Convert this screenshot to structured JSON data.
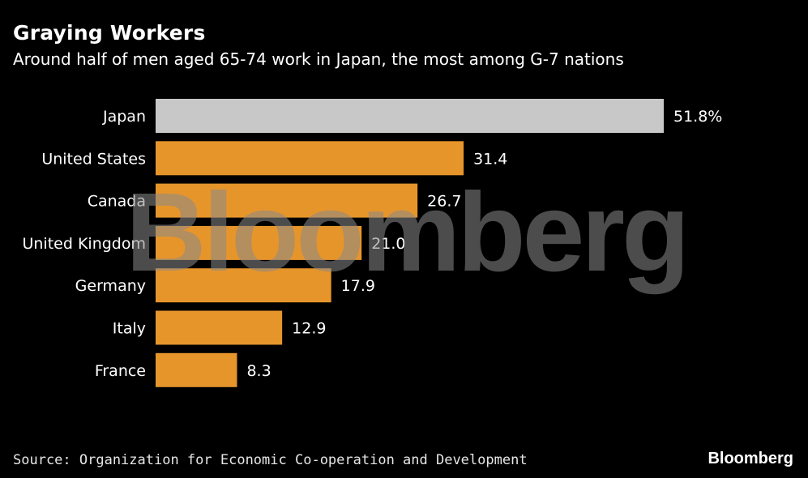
{
  "title": "Graying Workers",
  "subtitle": "Around half of men aged 65-74 work in Japan, the most among G-7 nations",
  "source": "Source: Organization for Economic Co-operation and Development",
  "brand": "Bloomberg",
  "watermark": "Bloomberg",
  "colors": {
    "background": "#000000",
    "highlight_bar": "#c8c8c8",
    "bar": "#e6952b",
    "text": "#ffffff"
  },
  "chart_data": {
    "type": "bar",
    "orientation": "horizontal",
    "categories": [
      "Japan",
      "United States",
      "Canada",
      "United Kingdom",
      "Germany",
      "Italy",
      "France"
    ],
    "values": [
      51.8,
      31.4,
      26.7,
      21.0,
      17.9,
      12.9,
      8.3
    ],
    "value_labels": [
      "51.8%",
      "31.4",
      "26.7",
      "21.0",
      "17.9",
      "12.9",
      "8.3"
    ],
    "highlight_category": "Japan",
    "xlim": [
      0,
      51.8
    ],
    "grid": false,
    "legend": "none"
  }
}
